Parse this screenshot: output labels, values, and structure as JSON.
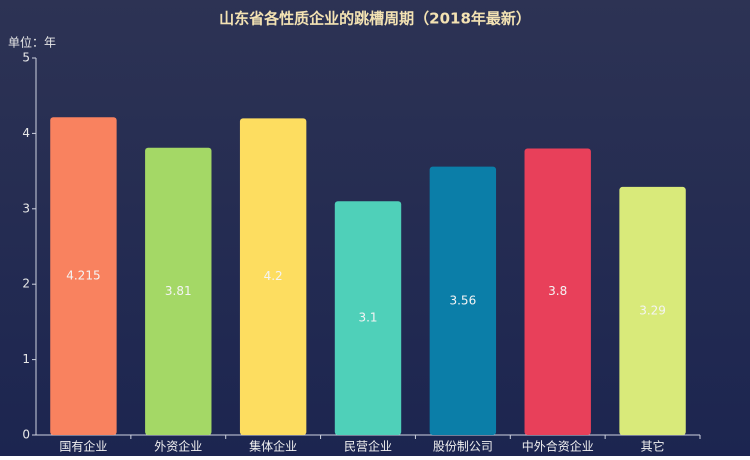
{
  "chart_data": {
    "type": "bar",
    "title": "山东省各性质企业的跳槽周期（2018年最新）",
    "y_axis_label": "单位：年",
    "categories": [
      "国有企业",
      "外资企业",
      "集体企业",
      "民营企业",
      "股份制公司",
      "中外合资企业",
      "其它"
    ],
    "values": [
      4.215,
      3.81,
      4.2,
      3.1,
      3.56,
      3.8,
      3.29
    ],
    "colors": [
      "#f9825f",
      "#a4d866",
      "#fddd60",
      "#4fd0b9",
      "#0b7ea8",
      "#e8405a",
      "#d9ea7a"
    ],
    "ylim": [
      0,
      5
    ],
    "yticks": [
      0,
      1,
      2,
      3,
      4,
      5
    ],
    "grid": false
  }
}
